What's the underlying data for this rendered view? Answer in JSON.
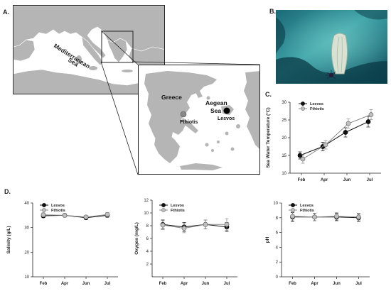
{
  "panels": {
    "a": "A.",
    "b": "B.",
    "c": "C.",
    "d": "D."
  },
  "map": {
    "sea_label_line1": "Mediterranean",
    "sea_label_line2": "Sea",
    "country": "Greece",
    "aegean_line1": "Aegean",
    "aegean_line2": "Sea",
    "site_fthiotis": "Fthiotis",
    "site_lesvos": "Lesvos",
    "colors": {
      "land": "#b5b5b5",
      "sea": "#ffffff",
      "border": "#222222"
    }
  },
  "photo": {
    "colors": {
      "water_dark": "#0d4a5a",
      "water_light": "#3fa3a8",
      "shell": "#d9e2d2"
    }
  },
  "chart_data": [
    {
      "id": "temperature",
      "type": "line",
      "categories": [
        "Feb",
        "Apr",
        "Jun",
        "Jul"
      ],
      "ylabel": "Sea Water Temperature (°C)",
      "xlabel": "",
      "ylim": [
        10,
        30
      ],
      "yticks": [
        10,
        15,
        20,
        25,
        30
      ],
      "legend_position": "top-left",
      "series": [
        {
          "name": "Lesvos",
          "values": [
            15.0,
            17.5,
            21.5,
            24.5
          ],
          "errors": [
            1.0,
            1.2,
            1.3,
            1.5
          ],
          "color": "#111111",
          "fill": "#111111"
        },
        {
          "name": "Fthiotis",
          "values": [
            14.0,
            18.0,
            24.0,
            26.5
          ],
          "errors": [
            1.2,
            1.2,
            1.3,
            1.4
          ],
          "color": "#888888",
          "fill": "#bfbfbf"
        }
      ]
    },
    {
      "id": "salinity",
      "type": "line",
      "categories": [
        "Feb",
        "Apr",
        "Jun",
        "Jul"
      ],
      "ylabel": "Salinity (g/L)",
      "xlabel": "",
      "ylim": [
        10,
        40
      ],
      "yticks": [
        10,
        20,
        30,
        40
      ],
      "legend_position": "top-left",
      "series": [
        {
          "name": "Lesvos",
          "values": [
            34.8,
            35.0,
            34.0,
            35.0
          ],
          "errors": [
            0.8,
            0.7,
            0.7,
            0.8
          ],
          "color": "#111111",
          "fill": "#111111"
        },
        {
          "name": "Fthiotis",
          "values": [
            35.2,
            35.0,
            34.3,
            35.3
          ],
          "errors": [
            0.8,
            0.7,
            0.7,
            0.8
          ],
          "color": "#888888",
          "fill": "#bfbfbf"
        }
      ]
    },
    {
      "id": "oxygen",
      "type": "line",
      "categories": [
        "Feb",
        "Apr",
        "Jun",
        "Jul"
      ],
      "ylabel": "Oxygen (mg/L)",
      "xlabel": "",
      "ylim": [
        0,
        12
      ],
      "yticks": [
        2,
        4,
        6,
        8,
        10,
        12
      ],
      "legend_position": "top-left",
      "series": [
        {
          "name": "Lesvos",
          "values": [
            8.2,
            7.8,
            8.2,
            7.8
          ],
          "errors": [
            0.7,
            0.7,
            0.7,
            0.7
          ],
          "color": "#111111",
          "fill": "#111111"
        },
        {
          "name": "Fthiotis",
          "values": [
            8.1,
            7.6,
            8.2,
            8.2
          ],
          "errors": [
            0.7,
            0.7,
            0.7,
            0.9
          ],
          "color": "#888888",
          "fill": "#bfbfbf"
        }
      ]
    },
    {
      "id": "ph",
      "type": "line",
      "categories": [
        "Feb",
        "Apr",
        "Jun",
        "Jul"
      ],
      "ylabel": "pH",
      "xlabel": "",
      "ylim": [
        0,
        10
      ],
      "yticks": [
        0,
        2,
        4,
        6,
        8,
        10
      ],
      "legend_position": "top-left",
      "series": [
        {
          "name": "Lesvos",
          "values": [
            8.1,
            8.1,
            8.1,
            8.0
          ],
          "errors": [
            0.6,
            0.5,
            0.5,
            0.5
          ],
          "color": "#111111",
          "fill": "#111111"
        },
        {
          "name": "Fthiotis",
          "values": [
            8.2,
            8.1,
            8.2,
            8.1
          ],
          "errors": [
            0.6,
            0.5,
            0.5,
            0.5
          ],
          "color": "#888888",
          "fill": "#bfbfbf"
        }
      ]
    }
  ]
}
